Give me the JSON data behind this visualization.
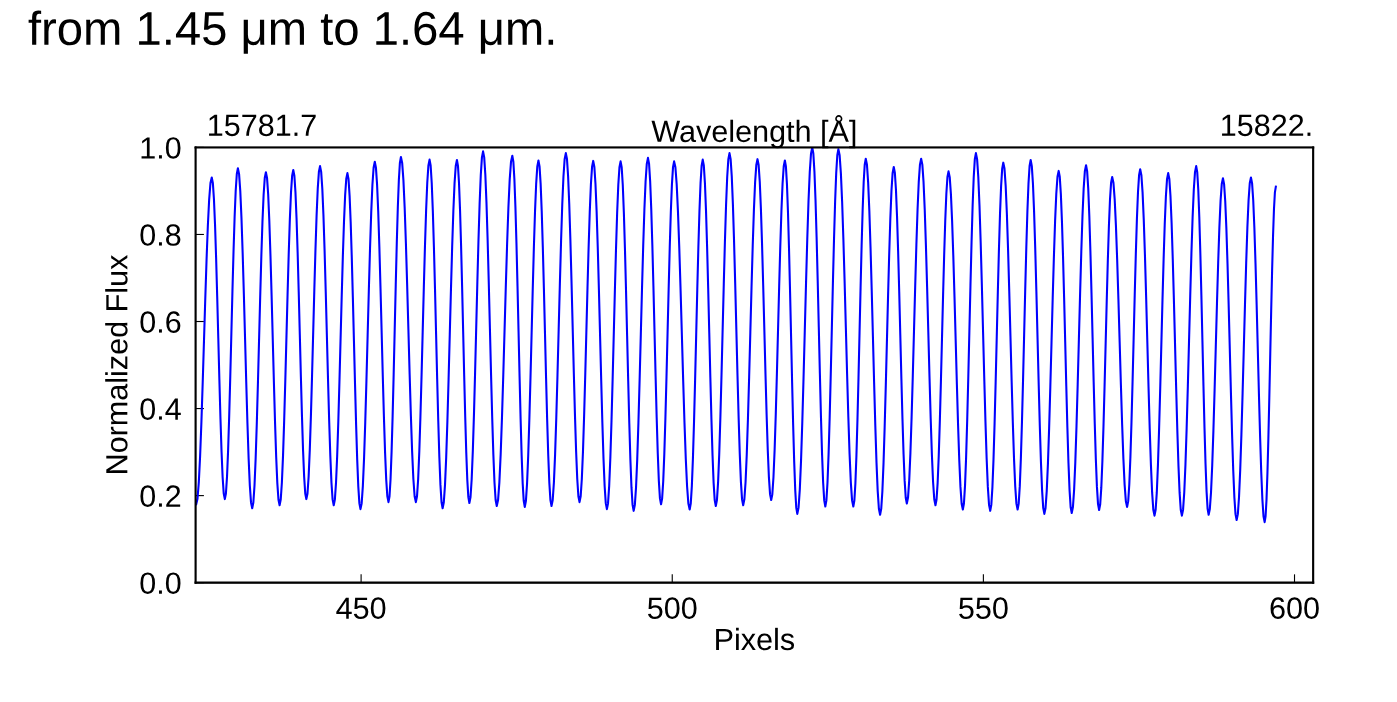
{
  "chart_data": {
    "type": "line",
    "title": "from 1.45 μm to 1.64 μm.",
    "xlabel": "Pixels",
    "ylabel": "Normalized Flux",
    "x2label": "Wavelength [Å]",
    "annotations": [
      "15781.7",
      "15822."
    ],
    "series": [
      {
        "color": "#0000ff",
        "x": [
          423.5,
          426.0,
          428.1,
          430.2,
          432.5,
          434.7,
          436.9,
          439.1,
          441.2,
          443.4,
          445.6,
          447.8,
          449.9,
          452.2,
          454.4,
          456.4,
          458.8,
          461.0,
          463.1,
          465.4,
          467.4,
          469.6,
          471.8,
          474.3,
          476.3,
          478.5,
          480.6,
          482.9,
          485.1,
          487.3,
          489.5,
          491.7,
          493.8,
          496.1,
          498.2,
          500.3,
          502.8,
          504.9,
          507.0,
          509.2,
          511.4,
          513.7,
          515.9,
          518.1,
          520.1,
          522.5,
          524.6,
          526.7,
          529.1,
          531.1,
          533.4,
          535.6,
          537.7,
          540.0,
          542.3,
          544.4,
          546.7,
          548.8,
          551.1,
          553.2,
          555.5,
          557.6,
          559.8,
          562.1,
          564.2,
          566.5,
          568.6,
          570.7,
          573.1,
          575.2,
          577.5,
          579.7,
          581.9,
          584.2,
          586.2,
          588.5,
          590.7,
          593.0,
          595.2,
          597.0
        ],
        "values": [
          0.18,
          0.931,
          0.192,
          0.952,
          0.171,
          0.943,
          0.178,
          0.948,
          0.192,
          0.957,
          0.178,
          0.941,
          0.169,
          0.967,
          0.185,
          0.978,
          0.185,
          0.972,
          0.171,
          0.971,
          0.183,
          0.991,
          0.176,
          0.981,
          0.174,
          0.97,
          0.176,
          0.987,
          0.185,
          0.969,
          0.169,
          0.968,
          0.165,
          0.976,
          0.18,
          0.968,
          0.168,
          0.972,
          0.176,
          0.987,
          0.178,
          0.973,
          0.19,
          0.97,
          0.158,
          1.0,
          0.175,
          0.996,
          0.175,
          0.974,
          0.156,
          0.955,
          0.182,
          0.974,
          0.178,
          0.945,
          0.168,
          0.987,
          0.165,
          0.965,
          0.168,
          0.971,
          0.158,
          0.946,
          0.16,
          0.959,
          0.167,
          0.932,
          0.174,
          0.95,
          0.154,
          0.941,
          0.154,
          0.957,
          0.156,
          0.929,
          0.144,
          0.931,
          0.139,
          0.91
        ]
      }
    ],
    "xlim": [
      423.4,
      603
    ],
    "xticks": [
      450,
      500,
      550,
      600
    ],
    "ylim": [
      0.0,
      1.0
    ],
    "yticks": [
      {
        "value": 0.0,
        "label": "0.0"
      },
      {
        "value": 0.2,
        "label": "0.2"
      },
      {
        "value": 0.4,
        "label": "0.4"
      },
      {
        "value": 0.6,
        "label": "0.6"
      },
      {
        "value": 0.8,
        "label": "0.8"
      },
      {
        "value": 1.0,
        "label": "1.0"
      }
    ],
    "grid": false,
    "legend": false,
    "marker": "none",
    "line_style": "solid"
  }
}
